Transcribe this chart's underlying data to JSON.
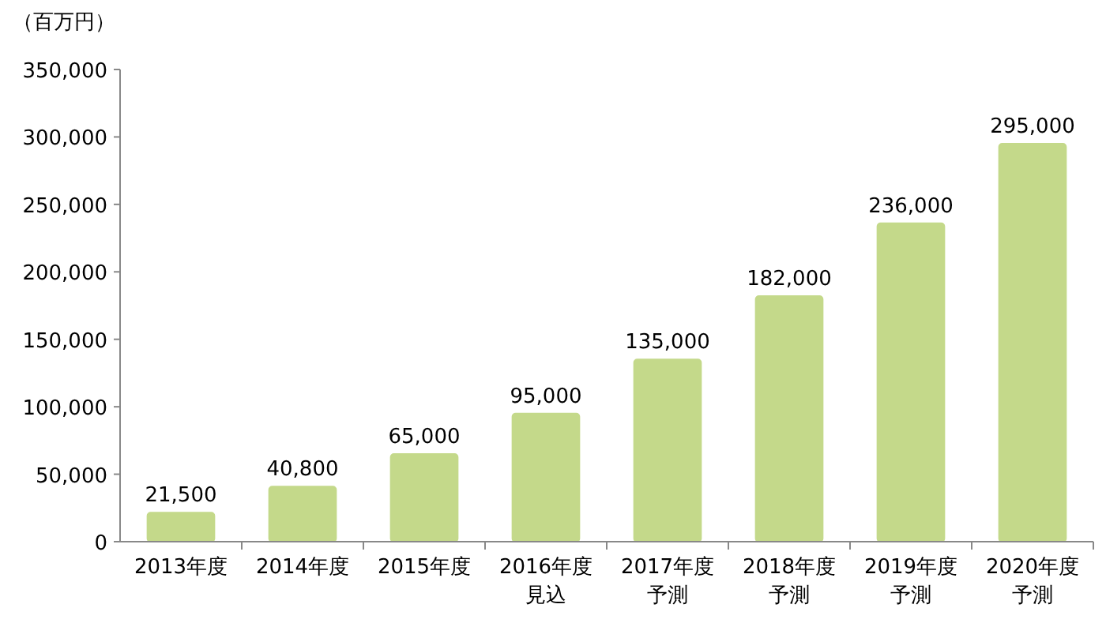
{
  "chart_data": {
    "type": "bar",
    "ylabel": "（百万円）",
    "categories": [
      "2013年度",
      "2014年度",
      "2015年度",
      "2016年度見込",
      "2017年度予測",
      "2018年度予測",
      "2019年度予測",
      "2020年度予測"
    ],
    "values": [
      21500,
      40800,
      65000,
      95000,
      135000,
      182000,
      236000,
      295000
    ],
    "color": "#c4d98a",
    "ylim": [
      0,
      350000
    ],
    "yticks": [
      {
        "value": 0,
        "label": "0"
      },
      {
        "value": 50000,
        "label": "50,000"
      },
      {
        "value": 100000,
        "label": "100,000"
      },
      {
        "value": 150000,
        "label": "150,000"
      },
      {
        "value": 200000,
        "label": "200,000"
      },
      {
        "value": 250000,
        "label": "250,000"
      },
      {
        "value": 300000,
        "label": "300,000"
      },
      {
        "value": 350000,
        "label": "350,000"
      }
    ],
    "value_labels": [
      "21,500",
      "40,800",
      "65,000",
      "95,000",
      "135,000",
      "182,000",
      "236,000",
      "295,000"
    ],
    "grid": false
  }
}
